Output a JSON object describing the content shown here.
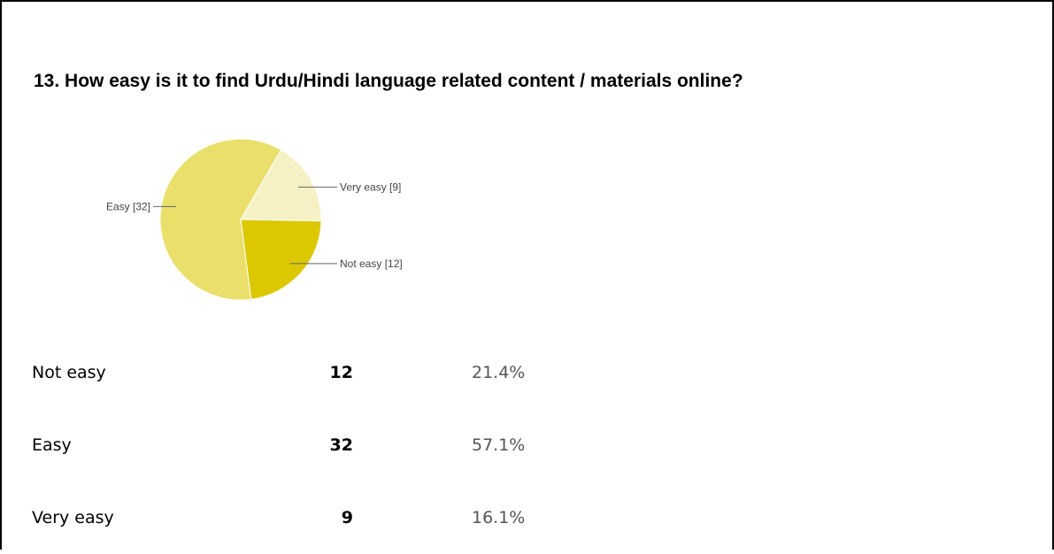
{
  "question": {
    "title": "13. How easy is it to find Urdu/Hindi language related content / materials online?"
  },
  "chart_data": {
    "type": "pie",
    "title": "13. How easy is it to find Urdu/Hindi language related content / materials online?",
    "slices": [
      {
        "label": "Very easy [9]",
        "category": "Very easy",
        "value": 9,
        "color": "#f6f1c4"
      },
      {
        "label": "Not easy [12]",
        "category": "Not easy",
        "value": 12,
        "color": "#dcc801"
      },
      {
        "label": "Easy [32]",
        "category": "Easy",
        "value": 32,
        "color": "#e9df6a"
      }
    ],
    "start_angle_deg": 30,
    "direction": "clockwise",
    "legend": "callout-labels"
  },
  "summary": {
    "rows": [
      {
        "option": "Not easy",
        "count": "12",
        "percent": "21.4%"
      },
      {
        "option": "Easy",
        "count": "32",
        "percent": "57.1%"
      },
      {
        "option": "Very easy",
        "count": "9",
        "percent": "16.1%"
      }
    ]
  }
}
